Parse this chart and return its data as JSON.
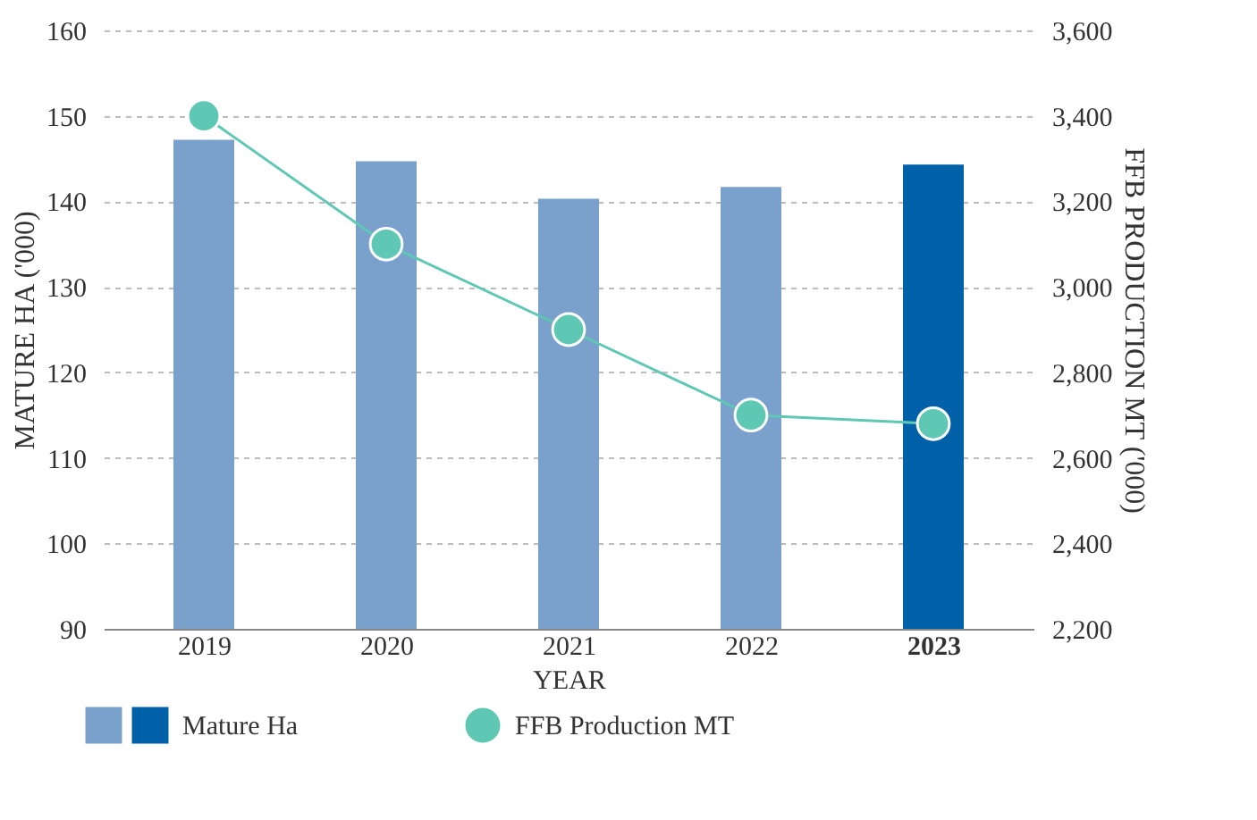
{
  "chart_data": {
    "type": "bar",
    "xlabel": "YEAR",
    "ylabel": "MATURE HA ('000)",
    "y2label": "FFB PRODUCTION MT ('000)",
    "categories": [
      "2019",
      "2020",
      "2021",
      "2022",
      "2023"
    ],
    "series": [
      {
        "name": "Mature Ha",
        "colors": [
          "#7aa0cc",
          "#7aa0cc",
          "#7aa0cc",
          "#7aa0cc",
          "#0061a8"
        ],
        "values": [
          147.2,
          144.7,
          140.3,
          141.7,
          144.3
        ]
      },
      {
        "name": "FFB Production MT",
        "type": "line",
        "axis": "y2",
        "color": "#5ec8b4",
        "marker": "circle",
        "values": [
          3400,
          3100,
          2900,
          2700,
          2680
        ]
      }
    ],
    "ylim": [
      90,
      160
    ],
    "yticks": [
      90,
      100,
      110,
      120,
      130,
      140,
      150,
      160
    ],
    "y2lim": [
      2200,
      3600
    ],
    "y2ticks": [
      {
        "value": 2200,
        "label": "2,200"
      },
      {
        "value": 2400,
        "label": "2,400"
      },
      {
        "value": 2600,
        "label": "2,600"
      },
      {
        "value": 2800,
        "label": "2,800"
      },
      {
        "value": 3000,
        "label": "3,000"
      },
      {
        "value": 3200,
        "label": "3,200"
      },
      {
        "value": 3400,
        "label": "3,400"
      },
      {
        "value": 3600,
        "label": "3,600"
      }
    ],
    "grid": "y",
    "legend": "bottom"
  }
}
